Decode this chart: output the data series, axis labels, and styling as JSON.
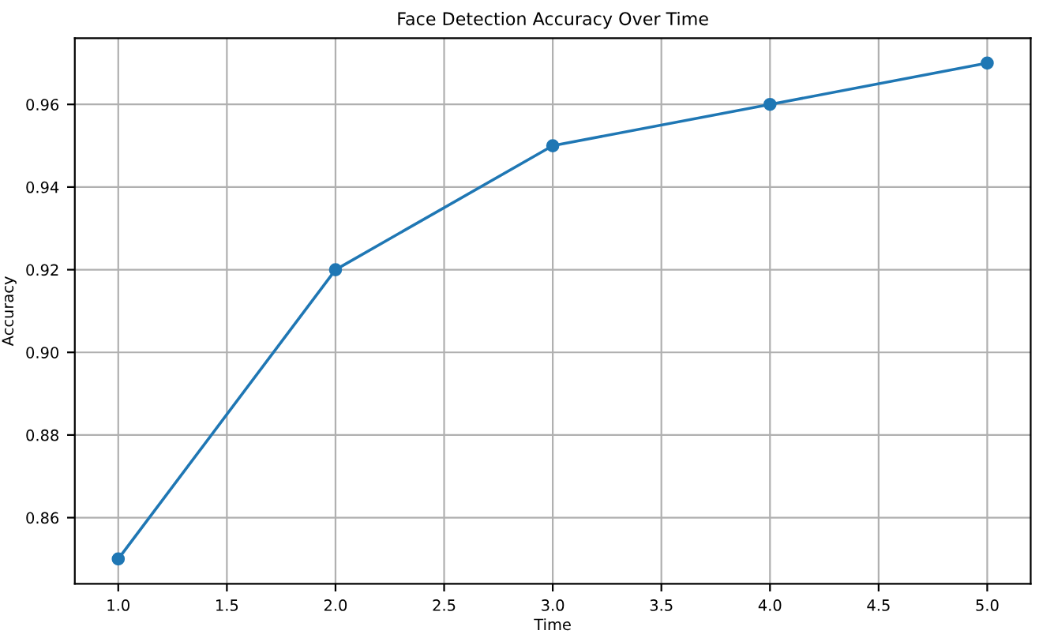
{
  "chart_data": {
    "type": "line",
    "title": "Face Detection Accuracy Over Time",
    "xlabel": "Time",
    "ylabel": "Accuracy",
    "x": [
      1,
      2,
      3,
      4,
      5
    ],
    "series": [
      {
        "color": "#1f77b4",
        "values": [
          0.85,
          0.92,
          0.95,
          0.96,
          0.97
        ]
      }
    ],
    "xlim": [
      0.8,
      5.2
    ],
    "ylim": [
      0.844,
      0.976
    ],
    "xticks": [
      {
        "value": 1,
        "label": "1.0"
      },
      {
        "value": 1.5,
        "label": "1.5"
      },
      {
        "value": 2,
        "label": "2.0"
      },
      {
        "value": 2.5,
        "label": "2.5"
      },
      {
        "value": 3,
        "label": "3.0"
      },
      {
        "value": 3.5,
        "label": "3.5"
      },
      {
        "value": 4,
        "label": "4.0"
      },
      {
        "value": 4.5,
        "label": "4.5"
      },
      {
        "value": 5,
        "label": "5.0"
      }
    ],
    "yticks": [
      {
        "value": 0.86,
        "label": "0.86"
      },
      {
        "value": 0.88,
        "label": "0.88"
      },
      {
        "value": 0.9,
        "label": "0.90"
      },
      {
        "value": 0.92,
        "label": "0.92"
      },
      {
        "value": 0.94,
        "label": "0.94"
      },
      {
        "value": 0.96,
        "label": "0.96"
      }
    ],
    "grid": true,
    "marker": "circle",
    "line_style": "solid"
  }
}
